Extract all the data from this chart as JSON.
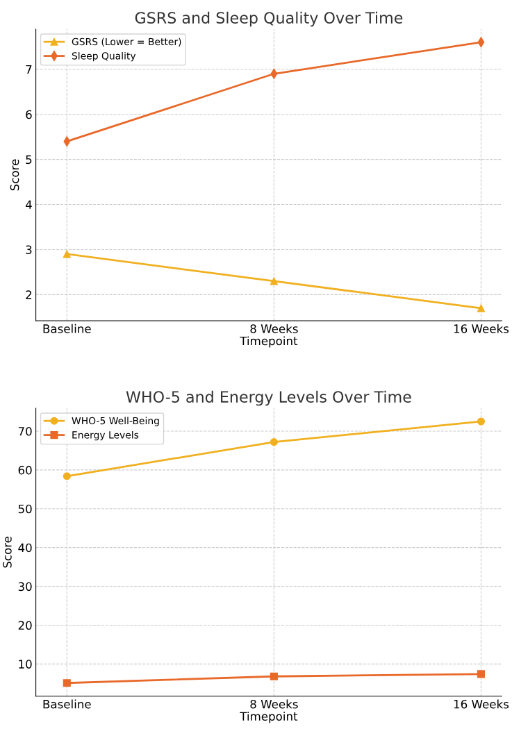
{
  "chart_data": [
    {
      "type": "line",
      "title": "GSRS and Sleep Quality Over Time",
      "xlabel": "Timepoint",
      "ylabel": "Score",
      "categories": [
        "Baseline",
        "8 Weeks",
        "16 Weeks"
      ],
      "series": [
        {
          "name": "GSRS (Lower = Better)",
          "color": "#f0b020",
          "marker": "triangle",
          "values": [
            2.9,
            2.3,
            1.7
          ]
        },
        {
          "name": "Sleep Quality",
          "color": "#e8692a",
          "marker": "diamond",
          "values": [
            5.4,
            6.9,
            7.6
          ]
        }
      ],
      "ylim": [
        1.42,
        7.89
      ],
      "yticks": [
        2,
        3,
        4,
        5,
        6,
        7
      ],
      "grid": true,
      "legend": "top left",
      "line_style": "solid"
    },
    {
      "type": "line",
      "title": "WHO-5 and Energy Levels Over Time",
      "xlabel": "Timepoint",
      "ylabel": "Score",
      "categories": [
        "Baseline",
        "8 Weeks",
        "16 Weeks"
      ],
      "series": [
        {
          "name": "WHO-5 Well-Being",
          "color": "#f0b020",
          "marker": "circle",
          "values": [
            58.4,
            67.2,
            72.5
          ]
        },
        {
          "name": "Energy Levels",
          "color": "#e8692a",
          "marker": "square",
          "values": [
            5.1,
            6.8,
            7.4
          ]
        }
      ],
      "ylim": [
        1.7,
        75.9
      ],
      "yticks": [
        10,
        20,
        30,
        40,
        50,
        60,
        70
      ],
      "grid": true,
      "legend": "top left",
      "line_style": "solid"
    }
  ]
}
